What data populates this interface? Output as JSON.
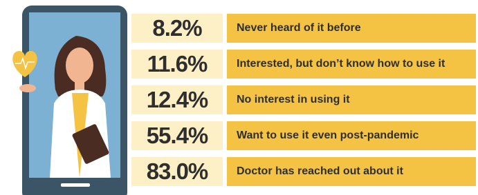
{
  "rows": [
    {
      "value": "8.2%",
      "label": "Never heard of it before"
    },
    {
      "value": "11.6%",
      "label": "Interested, but don’t know how to use it"
    },
    {
      "value": "12.4%",
      "label": "No interest in using it"
    },
    {
      "value": "55.4%",
      "label": "Want to use it even post-pandemic"
    },
    {
      "value": "83.0%",
      "label": "Doctor has reached out about it"
    }
  ]
}
